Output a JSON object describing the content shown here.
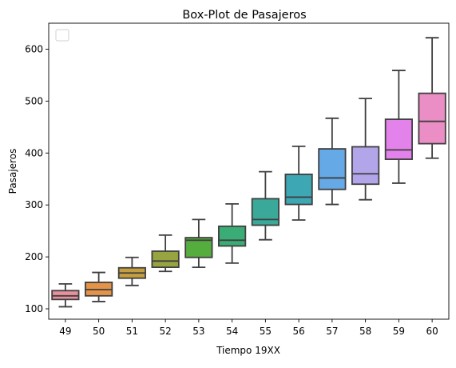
{
  "chart_data": {
    "type": "box",
    "title": "Box-Plot de Pasajeros",
    "xlabel": "Tiempo 19XX",
    "ylabel": "Pasajeros",
    "ylim": [
      80,
      650
    ],
    "yticks": [
      100,
      200,
      300,
      400,
      500,
      600
    ],
    "legend": {
      "position": "top-left",
      "entries": []
    },
    "grid": false,
    "categories": [
      "49",
      "50",
      "51",
      "52",
      "53",
      "54",
      "55",
      "56",
      "57",
      "58",
      "59",
      "60"
    ],
    "boxes": [
      {
        "min": 104,
        "q1": 118,
        "median": 125,
        "q3": 135,
        "max": 148,
        "color": "#e8919c"
      },
      {
        "min": 114,
        "q1": 125,
        "median": 137,
        "q3": 151,
        "max": 170,
        "color": "#e39449"
      },
      {
        "min": 145,
        "q1": 159,
        "median": 169,
        "q3": 179,
        "max": 199,
        "color": "#c49e3f"
      },
      {
        "min": 172,
        "q1": 180,
        "median": 192,
        "q3": 211,
        "max": 242,
        "color": "#98a43f"
      },
      {
        "min": 180,
        "q1": 199,
        "median": 232,
        "q3": 237,
        "max": 272,
        "color": "#55ad3e"
      },
      {
        "min": 188,
        "q1": 221,
        "median": 232,
        "q3": 259,
        "max": 302,
        "color": "#3aad76"
      },
      {
        "min": 233,
        "q1": 261,
        "median": 272,
        "q3": 312,
        "max": 364,
        "color": "#3ba99a"
      },
      {
        "min": 271,
        "q1": 301,
        "median": 315,
        "q3": 359,
        "max": 413,
        "color": "#3da7b4"
      },
      {
        "min": 301,
        "q1": 330,
        "median": 352,
        "q3": 408,
        "max": 467,
        "color": "#65a9e6"
      },
      {
        "min": 310,
        "q1": 340,
        "median": 360,
        "q3": 412,
        "max": 505,
        "color": "#b3a5ea"
      },
      {
        "min": 342,
        "q1": 388,
        "median": 406,
        "q3": 465,
        "max": 559,
        "color": "#e382ea"
      },
      {
        "min": 390,
        "q1": 418,
        "median": 461,
        "q3": 515,
        "max": 622,
        "color": "#eb8ec6"
      }
    ]
  }
}
